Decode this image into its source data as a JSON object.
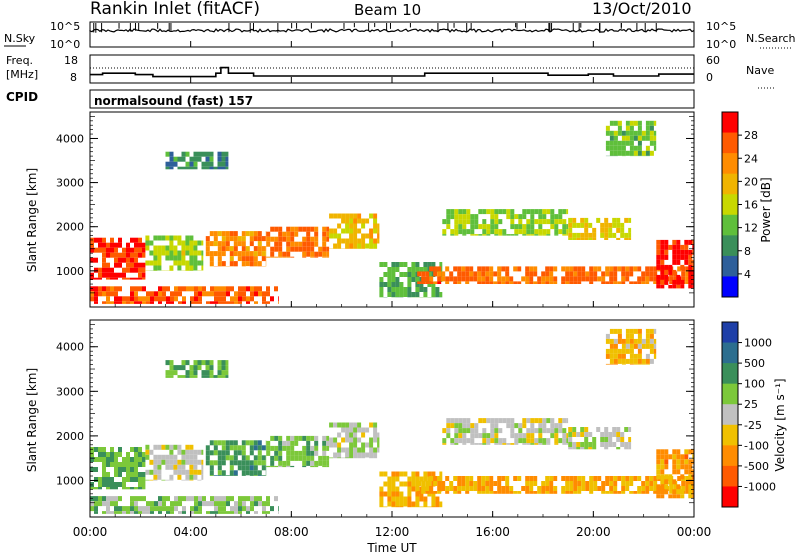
{
  "header": {
    "station": "Rankin Inlet (fitACF)",
    "beam": "Beam 10",
    "date": "13/Oct/2010"
  },
  "noise_panel": {
    "left_label": "N.Sky",
    "right_label": "N.Search",
    "ticks_left": [
      "10^5",
      "10^0"
    ],
    "ticks_right": [
      "10^5",
      "10^0"
    ]
  },
  "freq_panel": {
    "left_label_1": "Freq.",
    "left_label_2": "[MHz]",
    "right_label": "Nave",
    "ticks_left": [
      "18",
      "8"
    ],
    "ticks_right": [
      "60",
      "0"
    ],
    "freq_steps_mhz": [
      {
        "t": 0.0,
        "f": 11.0
      },
      {
        "t": 0.5,
        "f": 11.5
      },
      {
        "t": 1.8,
        "f": 11.0
      },
      {
        "t": 2.5,
        "f": 10.3
      },
      {
        "t": 5.0,
        "f": 11.5
      },
      {
        "t": 5.2,
        "f": 13.5
      },
      {
        "t": 5.5,
        "f": 11.5
      },
      {
        "t": 6.5,
        "f": 10.5
      },
      {
        "t": 13.3,
        "f": 11.5
      },
      {
        "t": 18.2,
        "f": 10.8
      },
      {
        "t": 19.8,
        "f": 11.2
      },
      {
        "t": 20.8,
        "f": 10.5
      },
      {
        "t": 22.6,
        "f": 11.2
      },
      {
        "t": 24.0,
        "f": 11.2
      }
    ]
  },
  "cpid": {
    "label": "CPID",
    "mode": "normalsound (fast) 157"
  },
  "power_panel": {
    "ylabel": "Slant Range [km]",
    "yticks": [
      "1000",
      "2000",
      "3000",
      "4000"
    ],
    "colorbar_label": "Power [dB]",
    "colorbar_ticks": [
      "28",
      "24",
      "20",
      "16",
      "12",
      "8",
      "4"
    ],
    "colors": [
      "#ff0000",
      "#ff5a00",
      "#ff8c00",
      "#f0b400",
      "#c8d800",
      "#5fbf3b",
      "#3a8f5a",
      "#2e5f9a",
      "#0000ff"
    ]
  },
  "velocity_panel": {
    "ylabel": "Slant Range [km]",
    "yticks": [
      "1000",
      "2000",
      "3000",
      "4000"
    ],
    "colorbar_label": "Velocity [m s⁻¹]",
    "colorbar_ticks": [
      "1000",
      "500",
      "100",
      "25",
      "-25",
      "-100",
      "-500",
      "-1000"
    ],
    "colors": [
      "#1e3fa8",
      "#2c6e8f",
      "#3a8f5a",
      "#7cc83a",
      "#c0c0c0",
      "#f0c000",
      "#ff8c00",
      "#ff5a00",
      "#ff0000"
    ]
  },
  "xaxis": {
    "label": "Time UT",
    "ticks": [
      "00:00",
      "04:00",
      "08:00",
      "12:00",
      "16:00",
      "20:00",
      "00:00"
    ]
  },
  "chart_data": [
    {
      "type": "heatmap",
      "title": "Power",
      "xlabel": "Time UT",
      "ylabel": "Slant Range [km]",
      "xlim_hours": [
        0,
        24
      ],
      "ylim_km": [
        180,
        4600
      ],
      "colorbar": {
        "label": "Power [dB]",
        "range": [
          0,
          30
        ]
      },
      "regions": [
        {
          "t0": 0.0,
          "t1": 2.2,
          "r0": 800,
          "r1": 1750,
          "value": 27
        },
        {
          "t0": 0.0,
          "t1": 7.5,
          "r0": 250,
          "r1": 650,
          "value": 25
        },
        {
          "t0": 2.2,
          "t1": 4.5,
          "r0": 1000,
          "r1": 1800,
          "value": 14
        },
        {
          "t0": 4.6,
          "t1": 7.0,
          "r0": 1100,
          "r1": 1900,
          "value": 22
        },
        {
          "t0": 7.0,
          "t1": 9.5,
          "r0": 1300,
          "r1": 2000,
          "value": 24
        },
        {
          "t0": 9.5,
          "t1": 11.5,
          "r0": 1500,
          "r1": 2300,
          "value": 18
        },
        {
          "t0": 11.5,
          "t1": 14.0,
          "r0": 400,
          "r1": 1200,
          "value": 10
        },
        {
          "t0": 13.0,
          "t1": 24.0,
          "r0": 700,
          "r1": 1100,
          "value": 24
        },
        {
          "t0": 22.5,
          "t1": 24.0,
          "r0": 600,
          "r1": 1700,
          "value": 28
        },
        {
          "t0": 14.0,
          "t1": 19.0,
          "r0": 1800,
          "r1": 2400,
          "value": 13
        },
        {
          "t0": 19.0,
          "t1": 21.5,
          "r0": 1700,
          "r1": 2200,
          "value": 16
        },
        {
          "t0": 3.0,
          "t1": 5.5,
          "r0": 3300,
          "r1": 3700,
          "value": 8
        },
        {
          "t0": 20.5,
          "t1": 22.5,
          "r0": 3600,
          "r1": 4400,
          "value": 12
        }
      ]
    },
    {
      "type": "heatmap",
      "title": "Velocity",
      "xlabel": "Time UT",
      "ylabel": "Slant Range [km]",
      "xlim_hours": [
        0,
        24
      ],
      "ylim_km": [
        180,
        4600
      ],
      "colorbar": {
        "label": "Velocity [m s⁻¹]",
        "range": [
          -1000,
          1000
        ]
      },
      "regions": [
        {
          "t0": 0.0,
          "t1": 2.2,
          "r0": 800,
          "r1": 1750,
          "value": 300
        },
        {
          "t0": 0.0,
          "t1": 7.5,
          "r0": 250,
          "r1": 650,
          "value": 200
        },
        {
          "t0": 2.2,
          "t1": 4.5,
          "r0": 1000,
          "r1": 1800,
          "value": 0
        },
        {
          "t0": 4.6,
          "t1": 7.0,
          "r0": 1100,
          "r1": 1900,
          "value": 400
        },
        {
          "t0": 7.0,
          "t1": 9.5,
          "r0": 1300,
          "r1": 2000,
          "value": 250
        },
        {
          "t0": 9.5,
          "t1": 11.5,
          "r0": 1500,
          "r1": 2300,
          "value": 60
        },
        {
          "t0": 11.5,
          "t1": 14.0,
          "r0": 400,
          "r1": 1200,
          "value": -300
        },
        {
          "t0": 13.0,
          "t1": 24.0,
          "r0": 700,
          "r1": 1100,
          "value": -350
        },
        {
          "t0": 22.5,
          "t1": 24.0,
          "r0": 600,
          "r1": 1700,
          "value": -400
        },
        {
          "t0": 14.0,
          "t1": 19.0,
          "r0": 1800,
          "r1": 2400,
          "value": 0
        },
        {
          "t0": 19.0,
          "t1": 21.5,
          "r0": 1700,
          "r1": 2200,
          "value": 0
        },
        {
          "t0": 3.0,
          "t1": 5.5,
          "r0": 3300,
          "r1": 3700,
          "value": 300
        },
        {
          "t0": 20.5,
          "t1": 22.5,
          "r0": 3600,
          "r1": 4400,
          "value": -250
        }
      ]
    }
  ]
}
